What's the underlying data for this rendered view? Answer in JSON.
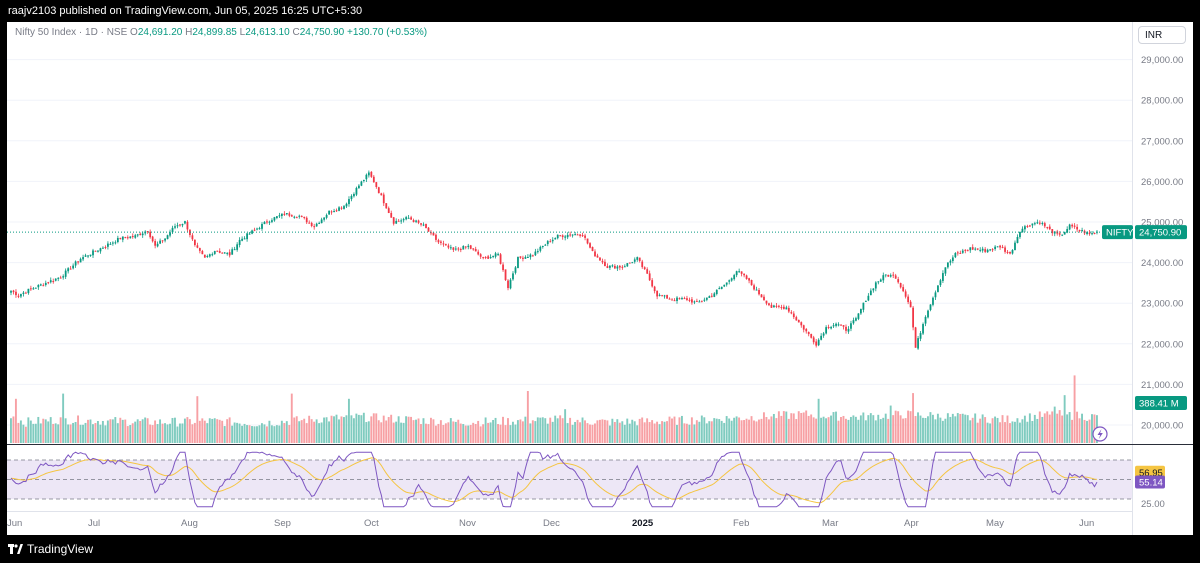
{
  "header": {
    "publisher_line": "raajv2103 published on TradingView.com, Jun 05, 2025 16:25 UTC+5:30"
  },
  "legend": {
    "symbol": "Nifty 50 Index · 1D · NSE",
    "o_label": "O",
    "o_value": "24,691.20",
    "h_label": "H",
    "h_value": "24,899.85",
    "l_label": "L",
    "l_value": "24,613.10",
    "c_label": "C",
    "c_value": "24,750.90",
    "change": "+130.70 (+0.53%)"
  },
  "currency_button": "INR",
  "footer": {
    "brand": "TradingView"
  },
  "colors": {
    "up": "#089981",
    "down": "#f23645",
    "vol_up": "#7fcbbf",
    "vol_down": "#f7a0a4",
    "rsi": "#7e57c2",
    "rsi_ma": "#f5c542",
    "rsi_band": "#ede7f6"
  },
  "chart_data": {
    "type": "candlestick",
    "symbol_tag": "NIFTY",
    "last_price_label": "24,750.90",
    "last_price": 24750.9,
    "price_axis": {
      "ticks": [
        20000,
        21000,
        22000,
        23000,
        24000,
        25000,
        26000,
        27000,
        28000,
        29000
      ],
      "tick_labels": [
        "20,000.00",
        "21,000.00",
        "22,000.00",
        "23,000.00",
        "24,000.00",
        "25,000.00",
        "26,000.00",
        "27,000.00",
        "28,000.00",
        "29,000.00"
      ],
      "range": [
        19500,
        29400
      ]
    },
    "volume_label": "388.41 M",
    "x_axis_labels": [
      "Jun",
      "Jul",
      "Aug",
      "Sep",
      "Oct",
      "Nov",
      "Dec",
      "2025",
      "Feb",
      "Mar",
      "Apr",
      "May",
      "Jun"
    ],
    "x_axis_bold": [
      "2025"
    ],
    "rsi": {
      "ma_value_label": "56.95",
      "value_label": "55.14",
      "level_label": "25.00",
      "upper": 70,
      "middle": 50,
      "lower": 30
    },
    "price_path": [
      [
        0,
        23300
      ],
      [
        3,
        23200
      ],
      [
        8,
        23350
      ],
      [
        14,
        23500
      ],
      [
        20,
        23650
      ],
      [
        28,
        24100
      ],
      [
        36,
        24350
      ],
      [
        44,
        24600
      ],
      [
        50,
        24650
      ],
      [
        55,
        24800
      ],
      [
        58,
        24400
      ],
      [
        62,
        24600
      ],
      [
        66,
        24900
      ],
      [
        70,
        25000
      ],
      [
        74,
        24400
      ],
      [
        78,
        24100
      ],
      [
        82,
        24300
      ],
      [
        88,
        24200
      ],
      [
        92,
        24550
      ],
      [
        98,
        24800
      ],
      [
        104,
        25050
      ],
      [
        110,
        25200
      ],
      [
        116,
        25150
      ],
      [
        122,
        24900
      ],
      [
        128,
        25250
      ],
      [
        134,
        25400
      ],
      [
        140,
        25900
      ],
      [
        144,
        26200
      ],
      [
        146,
        26000
      ],
      [
        150,
        25500
      ],
      [
        154,
        25000
      ],
      [
        160,
        25100
      ],
      [
        166,
        24900
      ],
      [
        172,
        24500
      ],
      [
        178,
        24300
      ],
      [
        184,
        24400
      ],
      [
        190,
        24100
      ],
      [
        196,
        24200
      ],
      [
        200,
        23400
      ],
      [
        204,
        24100
      ],
      [
        210,
        24200
      ],
      [
        216,
        24500
      ],
      [
        220,
        24650
      ],
      [
        226,
        24700
      ],
      [
        230,
        24700
      ],
      [
        234,
        24250
      ],
      [
        240,
        23900
      ],
      [
        246,
        23900
      ],
      [
        252,
        24100
      ],
      [
        256,
        23700
      ],
      [
        260,
        23200
      ],
      [
        266,
        23100
      ],
      [
        272,
        23100
      ],
      [
        276,
        23000
      ],
      [
        282,
        23200
      ],
      [
        288,
        23500
      ],
      [
        292,
        23800
      ],
      [
        296,
        23600
      ],
      [
        300,
        23300
      ],
      [
        306,
        22900
      ],
      [
        312,
        22900
      ],
      [
        316,
        22600
      ],
      [
        320,
        22300
      ],
      [
        324,
        22000
      ],
      [
        328,
        22400
      ],
      [
        332,
        22500
      ],
      [
        336,
        22350
      ],
      [
        340,
        22600
      ],
      [
        344,
        23100
      ],
      [
        348,
        23500
      ],
      [
        352,
        23700
      ],
      [
        356,
        23650
      ],
      [
        360,
        23200
      ],
      [
        362,
        22900
      ],
      [
        364,
        21900
      ],
      [
        366,
        22300
      ],
      [
        368,
        22700
      ],
      [
        372,
        23300
      ],
      [
        376,
        23900
      ],
      [
        380,
        24200
      ],
      [
        386,
        24350
      ],
      [
        392,
        24300
      ],
      [
        398,
        24400
      ],
      [
        402,
        24200
      ],
      [
        406,
        24800
      ],
      [
        410,
        24950
      ],
      [
        414,
        25000
      ],
      [
        418,
        24800
      ],
      [
        422,
        24650
      ],
      [
        426,
        24900
      ],
      [
        430,
        24800
      ],
      [
        434,
        24700
      ],
      [
        437,
        24750
      ]
    ],
    "volume_profile": [
      [
        0,
        0.55
      ],
      [
        5,
        0.4
      ],
      [
        20,
        0.45
      ],
      [
        40,
        0.42
      ],
      [
        60,
        0.4
      ],
      [
        80,
        0.42
      ],
      [
        100,
        0.38
      ],
      [
        120,
        0.45
      ],
      [
        140,
        0.5
      ],
      [
        160,
        0.45
      ],
      [
        180,
        0.4
      ],
      [
        200,
        0.42
      ],
      [
        220,
        0.45
      ],
      [
        240,
        0.4
      ],
      [
        260,
        0.42
      ],
      [
        280,
        0.45
      ],
      [
        300,
        0.5
      ],
      [
        320,
        0.55
      ],
      [
        340,
        0.5
      ],
      [
        360,
        0.55
      ],
      [
        380,
        0.5
      ],
      [
        400,
        0.45
      ],
      [
        420,
        0.55
      ],
      [
        437,
        0.5
      ]
    ],
    "volume_spikes": [
      [
        2,
        0.85
      ],
      [
        21,
        0.95
      ],
      [
        75,
        0.9
      ],
      [
        113,
        0.95
      ],
      [
        136,
        0.85
      ],
      [
        208,
        1.0
      ],
      [
        223,
        0.65
      ],
      [
        325,
        0.85
      ],
      [
        354,
        0.72
      ],
      [
        363,
        0.96
      ],
      [
        420,
        0.7
      ],
      [
        424,
        0.92
      ],
      [
        428,
        1.3
      ]
    ]
  }
}
